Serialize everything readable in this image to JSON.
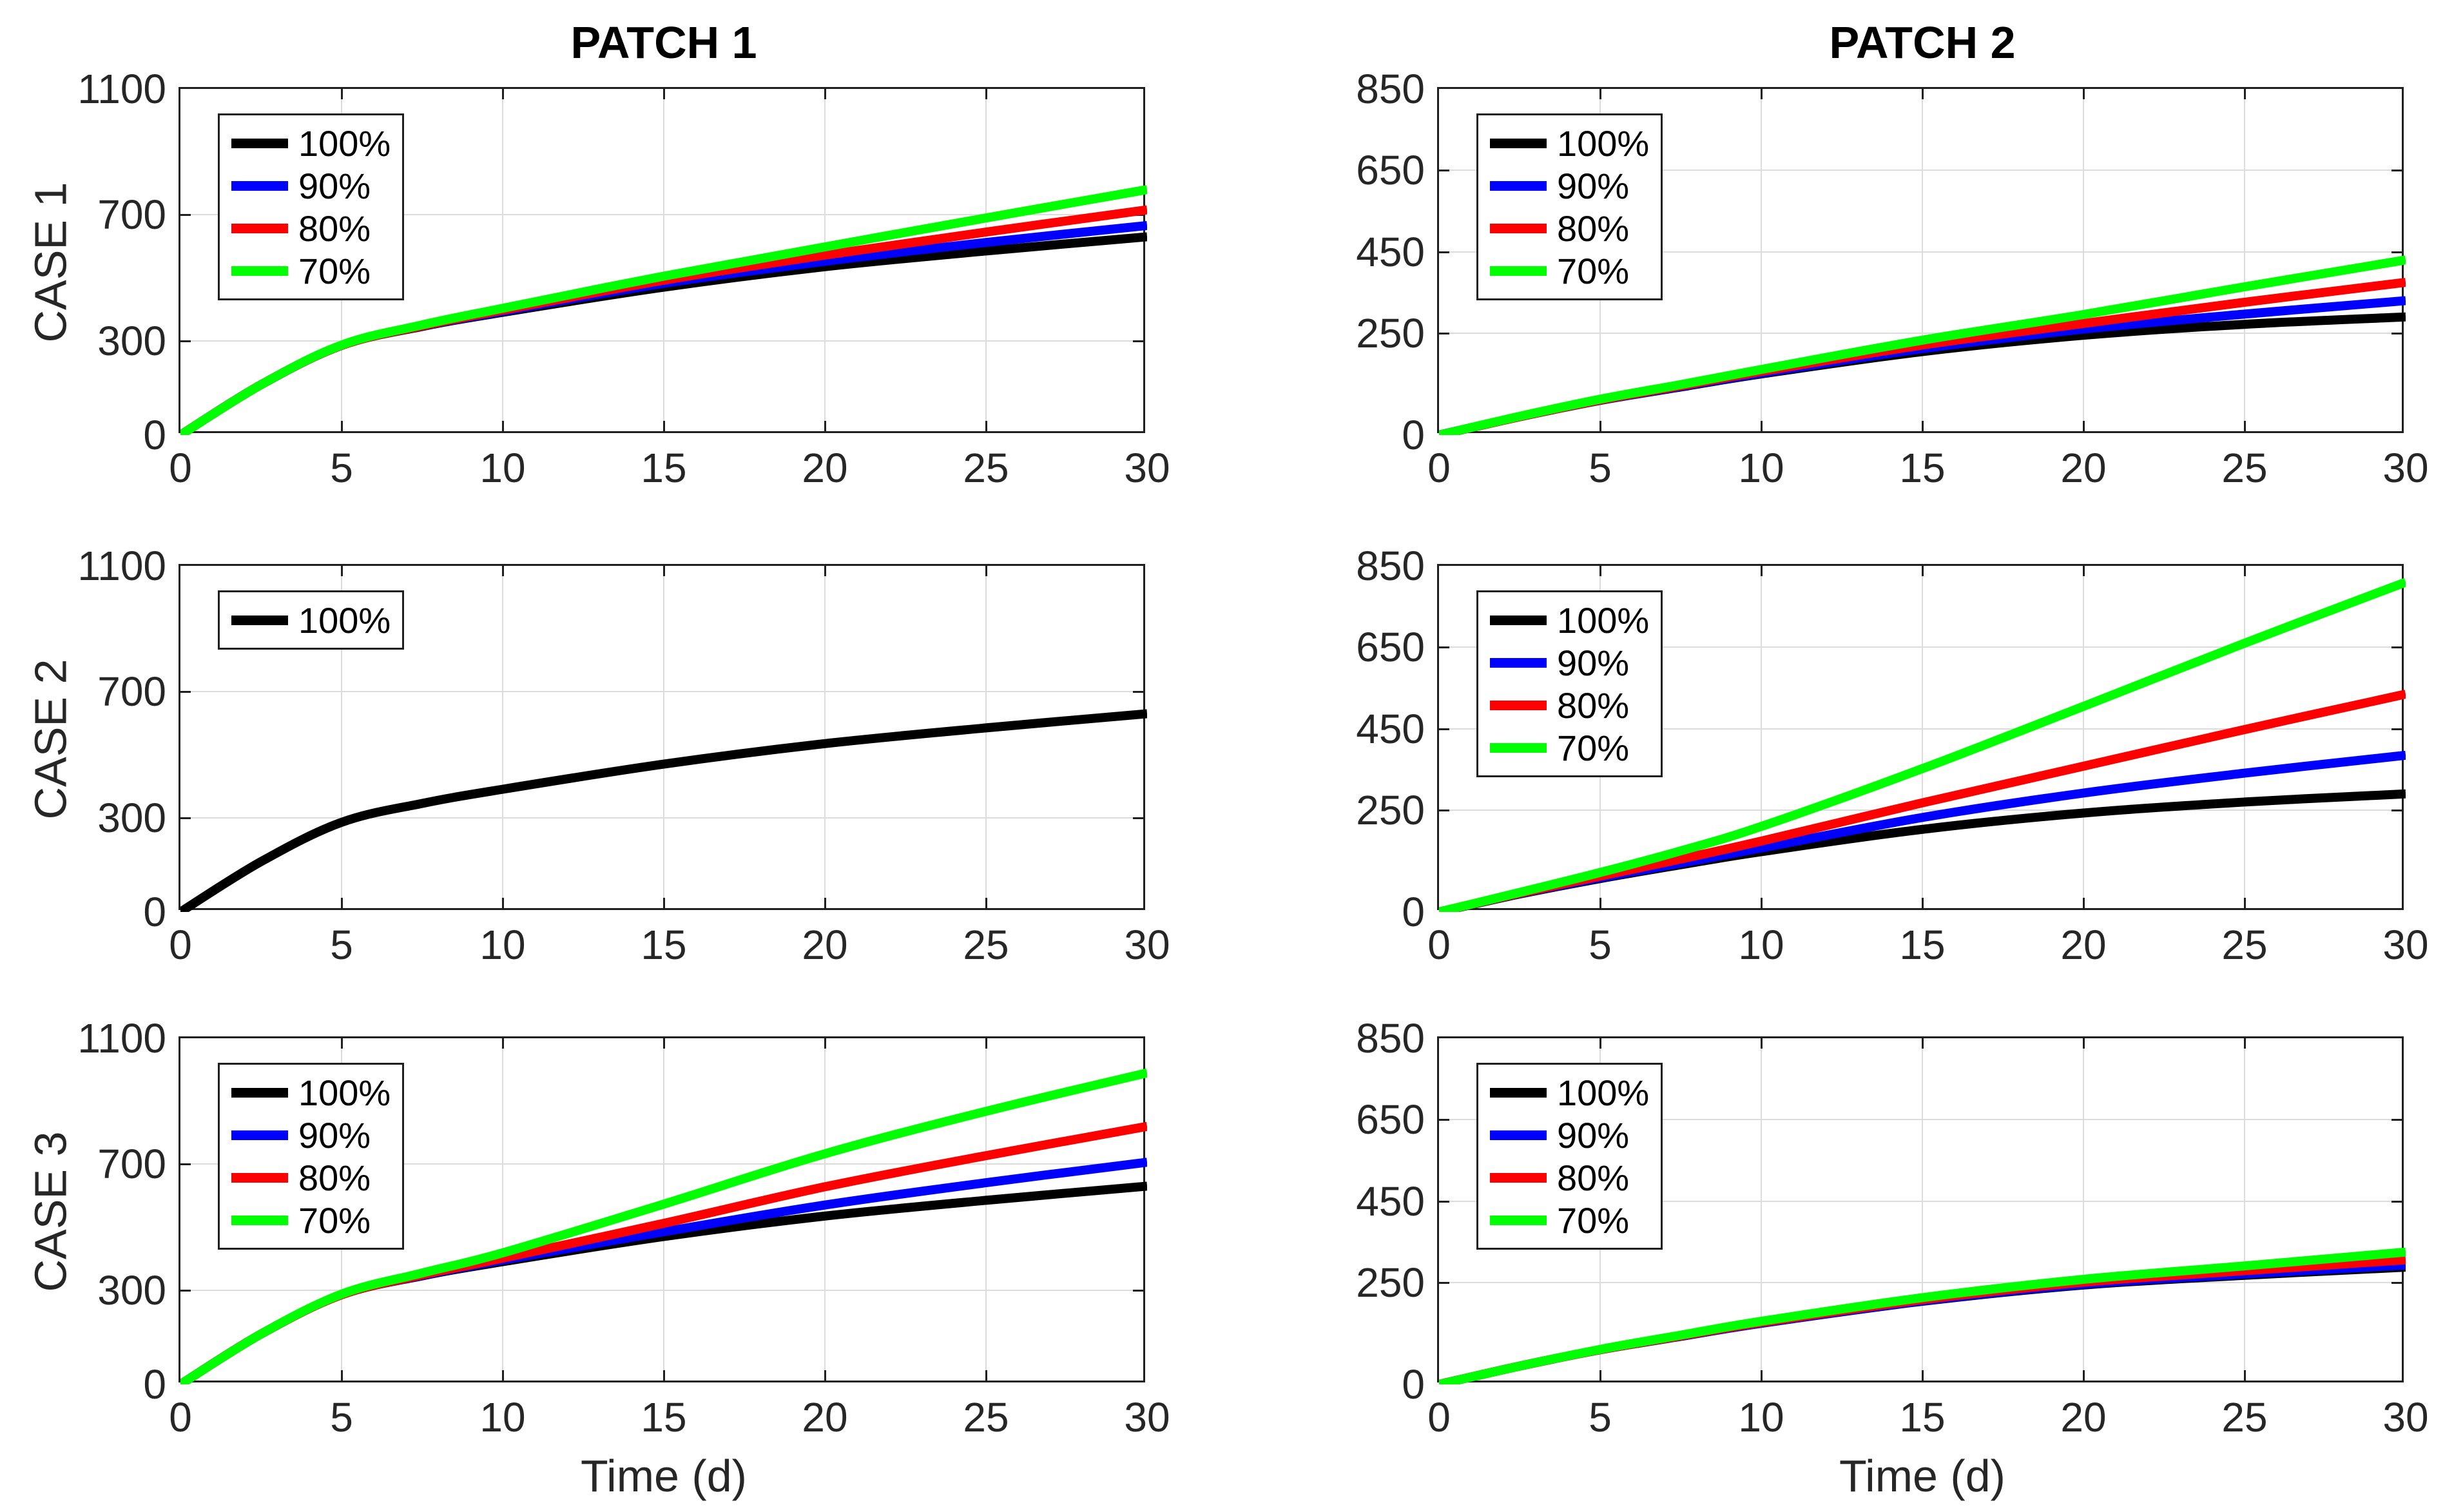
{
  "figure": {
    "xlabel": "Time (d)",
    "x_ticks": [
      0,
      5,
      10,
      15,
      20,
      25,
      30
    ],
    "x_range": [
      0,
      30
    ],
    "background": "#ffffff"
  },
  "columns": [
    {
      "title": "PATCH 1",
      "ylim": [
        0,
        1100
      ],
      "y_ticks": [
        0,
        300,
        700,
        1100
      ]
    },
    {
      "title": "PATCH 2",
      "ylim": [
        0,
        850
      ],
      "y_ticks": [
        0,
        250,
        450,
        650,
        850
      ]
    }
  ],
  "rows": [
    {
      "label": "CASE 1"
    },
    {
      "label": "CASE 2"
    },
    {
      "label": "CASE 3"
    }
  ],
  "colors": {
    "series": {
      "100%": "#000000",
      "90%": "#0000ff",
      "80%": "#ff0000",
      "70%": "#00ff00"
    },
    "grid": "#dcdcdc",
    "axis": "#1f1f1f",
    "tick_text": "#262626",
    "legend_text": "#000000"
  },
  "chart_data": [
    {
      "id": "case1-patch1",
      "type": "line",
      "title": "PATCH 1",
      "row_label": "CASE 1",
      "xlabel": "",
      "x_ticks": [
        0,
        5,
        10,
        15,
        20,
        25,
        30
      ],
      "xlim": [
        0,
        30
      ],
      "ylim": [
        0,
        1100
      ],
      "y_ticks": [
        0,
        300,
        700,
        1100
      ],
      "grid": true,
      "legend": [
        "100%",
        "90%",
        "80%",
        "70%"
      ],
      "legend_position": "northwest-inset",
      "x": [
        0,
        2.5,
        5,
        7.5,
        10,
        15,
        20,
        25,
        30
      ],
      "series": [
        {
          "name": "100%",
          "color": "#000000",
          "values": [
            0,
            160,
            285,
            345,
            390,
            470,
            535,
            585,
            630
          ]
        },
        {
          "name": "90%",
          "color": "#0000ff",
          "values": [
            0,
            160,
            285,
            346,
            393,
            482,
            552,
            612,
            666
          ]
        },
        {
          "name": "80%",
          "color": "#ff0000",
          "values": [
            0,
            160,
            285,
            347,
            397,
            492,
            572,
            645,
            716
          ]
        },
        {
          "name": "70%",
          "color": "#00ff00",
          "values": [
            0,
            160,
            286,
            350,
            403,
            505,
            598,
            690,
            780
          ]
        }
      ]
    },
    {
      "id": "case1-patch2",
      "type": "line",
      "title": "PATCH 2",
      "row_label": "CASE 1",
      "xlabel": "",
      "x_ticks": [
        0,
        5,
        10,
        15,
        20,
        25,
        30
      ],
      "xlim": [
        0,
        30
      ],
      "ylim": [
        0,
        850
      ],
      "y_ticks": [
        0,
        250,
        450,
        650,
        850
      ],
      "grid": true,
      "legend": [
        "100%",
        "90%",
        "80%",
        "70%"
      ],
      "legend_position": "northwest-inset",
      "x": [
        0,
        2.5,
        5,
        7.5,
        10,
        15,
        20,
        25,
        30
      ],
      "series": [
        {
          "name": "100%",
          "color": "#000000",
          "values": [
            0,
            45,
            85,
            118,
            150,
            205,
            245,
            272,
            290
          ]
        },
        {
          "name": "90%",
          "color": "#0000ff",
          "values": [
            0,
            45,
            85,
            119,
            152,
            212,
            260,
            297,
            330
          ]
        },
        {
          "name": "80%",
          "color": "#ff0000",
          "values": [
            0,
            45,
            86,
            121,
            156,
            221,
            274,
            326,
            375
          ]
        },
        {
          "name": "70%",
          "color": "#00ff00",
          "values": [
            0,
            46,
            88,
            124,
            161,
            233,
            296,
            364,
            430
          ]
        }
      ]
    },
    {
      "id": "case2-patch1",
      "type": "line",
      "title": "",
      "row_label": "CASE 2",
      "xlabel": "",
      "x_ticks": [
        0,
        5,
        10,
        15,
        20,
        25,
        30
      ],
      "xlim": [
        0,
        30
      ],
      "ylim": [
        0,
        1100
      ],
      "y_ticks": [
        0,
        300,
        700,
        1100
      ],
      "grid": true,
      "legend": [
        "100%"
      ],
      "legend_position": "northwest-inset",
      "x": [
        0,
        2.5,
        5,
        7.5,
        10,
        15,
        20,
        25,
        30
      ],
      "series": [
        {
          "name": "100%",
          "color": "#000000",
          "values": [
            0,
            160,
            285,
            345,
            390,
            470,
            535,
            585,
            630
          ]
        }
      ]
    },
    {
      "id": "case2-patch2",
      "type": "line",
      "title": "",
      "row_label": "CASE 2",
      "xlabel": "",
      "x_ticks": [
        0,
        5,
        10,
        15,
        20,
        25,
        30
      ],
      "xlim": [
        0,
        30
      ],
      "ylim": [
        0,
        850
      ],
      "y_ticks": [
        0,
        250,
        450,
        650,
        850
      ],
      "grid": true,
      "legend": [
        "100%",
        "90%",
        "80%",
        "70%"
      ],
      "legend_position": "northwest-inset",
      "x": [
        0,
        2.5,
        5,
        7.5,
        10,
        15,
        20,
        25,
        30
      ],
      "series": [
        {
          "name": "100%",
          "color": "#000000",
          "values": [
            0,
            44,
            82,
            116,
            148,
            203,
            243,
            270,
            290
          ]
        },
        {
          "name": "90%",
          "color": "#0000ff",
          "values": [
            0,
            45,
            84,
            120,
            157,
            232,
            292,
            341,
            385
          ]
        },
        {
          "name": "80%",
          "color": "#ff0000",
          "values": [
            0,
            46,
            88,
            130,
            174,
            268,
            358,
            448,
            535
          ]
        },
        {
          "name": "70%",
          "color": "#00ff00",
          "values": [
            0,
            48,
            97,
            150,
            210,
            352,
            505,
            660,
            810
          ]
        }
      ]
    },
    {
      "id": "case3-patch1",
      "type": "line",
      "title": "",
      "row_label": "CASE 3",
      "xlabel": "Time (d)",
      "x_ticks": [
        0,
        5,
        10,
        15,
        20,
        25,
        30
      ],
      "xlim": [
        0,
        30
      ],
      "ylim": [
        0,
        1100
      ],
      "y_ticks": [
        0,
        300,
        700,
        1100
      ],
      "grid": true,
      "legend": [
        "100%",
        "90%",
        "80%",
        "70%"
      ],
      "legend_position": "northwest-inset",
      "x": [
        0,
        2.5,
        5,
        7.5,
        10,
        15,
        20,
        25,
        30
      ],
      "series": [
        {
          "name": "100%",
          "color": "#000000",
          "values": [
            0,
            160,
            285,
            345,
            390,
            470,
            535,
            585,
            630
          ]
        },
        {
          "name": "90%",
          "color": "#0000ff",
          "values": [
            0,
            160,
            285,
            346,
            395,
            485,
            570,
            641,
            706
          ]
        },
        {
          "name": "80%",
          "color": "#ff0000",
          "values": [
            0,
            160,
            285,
            348,
            401,
            512,
            628,
            727,
            820
          ]
        },
        {
          "name": "70%",
          "color": "#00ff00",
          "values": [
            0,
            160,
            287,
            354,
            418,
            573,
            733,
            868,
            990
          ]
        }
      ]
    },
    {
      "id": "case3-patch2",
      "type": "line",
      "title": "",
      "row_label": "CASE 3",
      "xlabel": "Time (d)",
      "x_ticks": [
        0,
        5,
        10,
        15,
        20,
        25,
        30
      ],
      "xlim": [
        0,
        30
      ],
      "ylim": [
        0,
        850
      ],
      "y_ticks": [
        0,
        250,
        450,
        650,
        850
      ],
      "grid": true,
      "legend": [
        "100%",
        "90%",
        "80%",
        "70%"
      ],
      "legend_position": "northwest-inset",
      "x": [
        0,
        2.5,
        5,
        7.5,
        10,
        15,
        20,
        25,
        30
      ],
      "series": [
        {
          "name": "100%",
          "color": "#000000",
          "values": [
            0,
            45,
            85,
            118,
            150,
            204,
            244,
            268,
            288
          ]
        },
        {
          "name": "90%",
          "color": "#0000ff",
          "values": [
            0,
            45,
            85,
            118,
            150,
            205,
            246,
            271,
            293
          ]
        },
        {
          "name": "80%",
          "color": "#ff0000",
          "values": [
            0,
            45,
            85,
            119,
            152,
            208,
            251,
            279,
            306
          ]
        },
        {
          "name": "70%",
          "color": "#00ff00",
          "values": [
            0,
            45,
            86,
            121,
            155,
            213,
            258,
            291,
            325
          ]
        }
      ]
    }
  ]
}
